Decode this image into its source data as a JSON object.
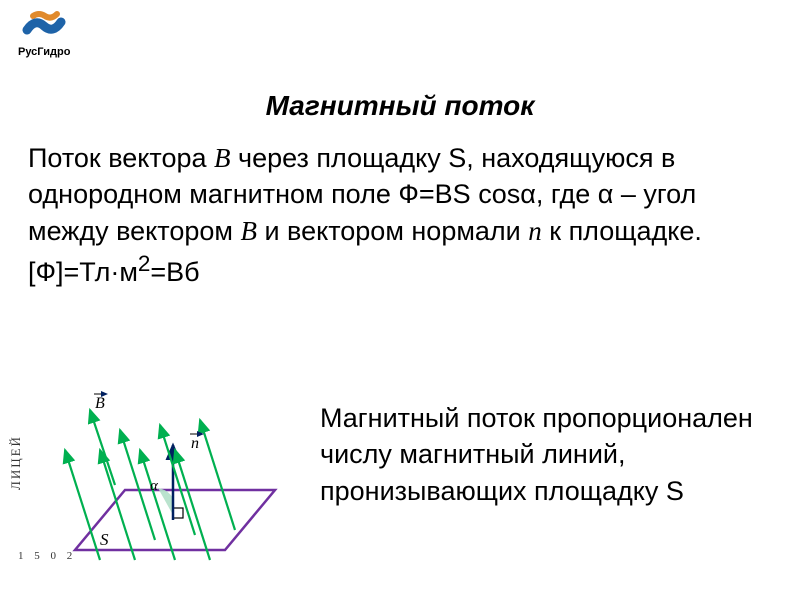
{
  "logo": {
    "caption": "РусГидро",
    "colors": {
      "blue": "#1e63a8",
      "orange": "#e08a2c"
    }
  },
  "title": "Магнитный поток",
  "paragraph1_parts": {
    "p1": "Поток вектора ",
    "v1": "B",
    "p2": " через площадку S, находящуюся в однородном магнитном поле Ф=BS cosα, где α – угол между вектором ",
    "v2": "B",
    "p3": " и вектором нормали ",
    "v3": "n",
    "p4": " к площадке. [Ф]=Тл·м",
    "sup": "2",
    "p5": "=Вб"
  },
  "paragraph2": "Магнитный поток пропорционален числу магнитный линий, пронизывающих площадку S",
  "diagram": {
    "colors": {
      "outline": "#7030a0",
      "arrows": "#00b050",
      "normal": "#002060",
      "text": "#000000",
      "angle_fill": "#b3e0c9"
    },
    "labels": {
      "B": "B",
      "n": "n",
      "S": "S",
      "alpha": "α"
    }
  },
  "side_logo": {
    "text": "ЛИЦЕЙ",
    "number": "1 5 0 2"
  }
}
